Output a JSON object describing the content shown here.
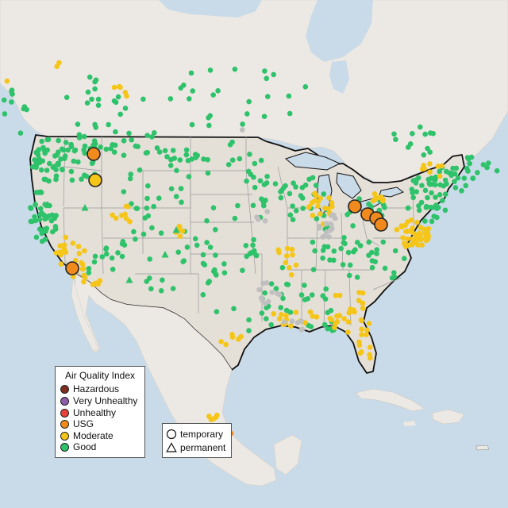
{
  "legend": {
    "title": "Air Quality Index",
    "categories": [
      {
        "label": "Hazardous",
        "color": "#7e2e1f"
      },
      {
        "label": "Very Unhealthy",
        "color": "#8e5ca8"
      },
      {
        "label": "Unhealthy",
        "color": "#e8413a"
      },
      {
        "label": "USG",
        "color": "#f08a1c"
      },
      {
        "label": "Moderate",
        "color": "#f5c518"
      },
      {
        "label": "Good",
        "color": "#2ec26b"
      }
    ],
    "shapes": [
      {
        "label": "temporary",
        "icon": "circle-outline-icon"
      },
      {
        "label": "permanent",
        "icon": "triangle-outline-icon"
      }
    ]
  },
  "colors": {
    "water": "#c9dbe8",
    "land": "#ece8e4",
    "land_alt": "#e2ddd5",
    "border": "#111111",
    "state_line": "#9a9a9a",
    "no_data": "#bfbfbf"
  }
}
